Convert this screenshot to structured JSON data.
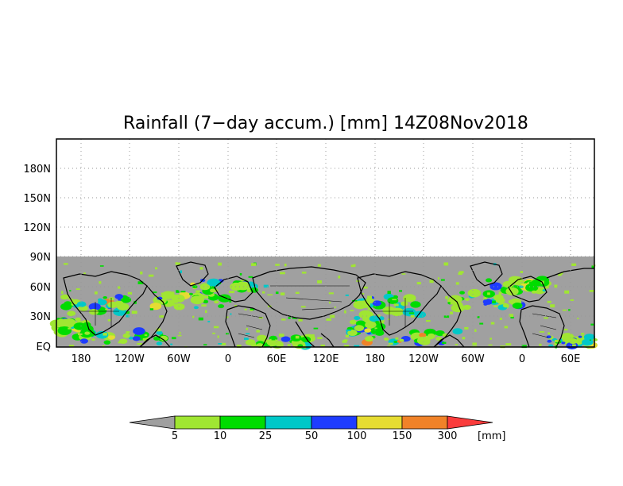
{
  "title": "Rainfall (7−day accum.) [mm] 14Z08Nov2018",
  "map": {
    "lat_labels": [
      "180N",
      "150N",
      "120N",
      "90N",
      "60N",
      "30N",
      "EQ"
    ],
    "lon_labels": [
      "180",
      "120W",
      "60W",
      "0",
      "60E",
      "120E",
      "180",
      "120W",
      "60W",
      "0",
      "60E"
    ],
    "background_colors": {
      "no_data": "#ffffff",
      "below_threshold": "#a0a0a0",
      "coastline": "#000000",
      "grid": "#999999"
    }
  },
  "colorbar": {
    "labels": [
      "5",
      "10",
      "25",
      "50",
      "100",
      "150",
      "300"
    ],
    "unit": "[mm]",
    "colors": [
      "#a0a0a0",
      "#a0e632",
      "#00dc00",
      "#00c8c8",
      "#1e3cff",
      "#e6dc32",
      "#f08228",
      "#fa3c3c"
    ]
  }
}
